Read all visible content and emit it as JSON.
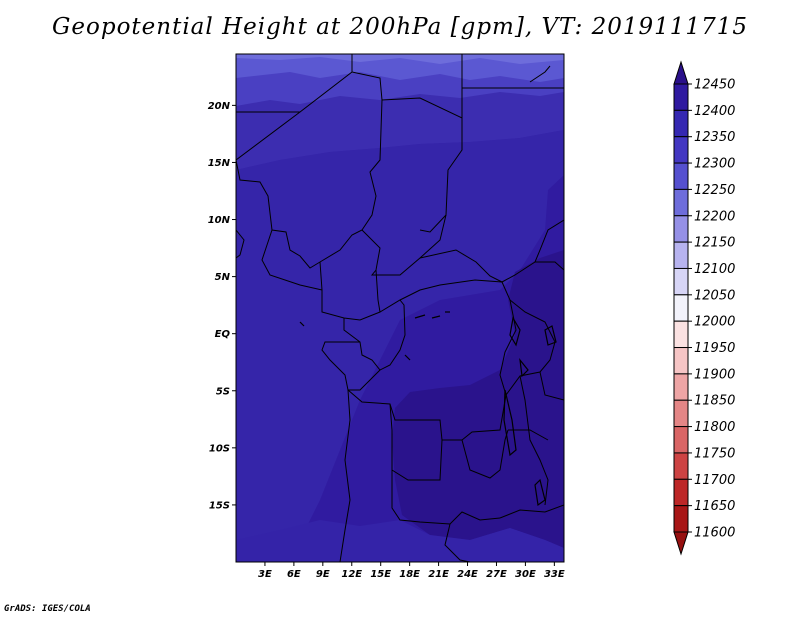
{
  "title": "Geopotential Height at 200hPa [gpm], VT: 2019111715",
  "credit": "GrADS: IGES/COLA",
  "map": {
    "lon_range": [
      0,
      34
    ],
    "lat_range": [
      -20,
      24.5
    ],
    "lon_ticks": [
      "3E",
      "6E",
      "9E",
      "12E",
      "15E",
      "18E",
      "21E",
      "24E",
      "27E",
      "30E",
      "33E"
    ],
    "lat_ticks": [
      "20N",
      "15N",
      "10N",
      "5N",
      "EQ",
      "5S",
      "10S",
      "15S"
    ],
    "contour_levels": [
      {
        "value": 12450,
        "color": "#2a138c"
      },
      {
        "value": 12400,
        "color": "#301ba0"
      },
      {
        "value": 12350,
        "color": "#3c2db0"
      },
      {
        "value": 12300,
        "color": "#4a40c2"
      },
      {
        "value": 12250,
        "color": "#5b58d2"
      },
      {
        "value": 12200,
        "color": "#7a78e0"
      }
    ]
  },
  "colorbar": {
    "labels": [
      "12450",
      "12400",
      "12350",
      "12300",
      "12250",
      "12200",
      "12150",
      "12100",
      "12050",
      "12000",
      "11950",
      "11900",
      "11850",
      "11800",
      "11750",
      "11700",
      "11650",
      "11600"
    ],
    "colors": [
      "#2a108a",
      "#2f1aa0",
      "#3528b2",
      "#4337c2",
      "#5550cf",
      "#6e6ddb",
      "#9590e6",
      "#b7b3ef",
      "#d7d5f6",
      "#f3f3fb",
      "#fbe2e2",
      "#f6c5c5",
      "#eea5a5",
      "#e48686",
      "#d96565",
      "#cd4343",
      "#bd2727",
      "#a81616",
      "#961010"
    ]
  }
}
